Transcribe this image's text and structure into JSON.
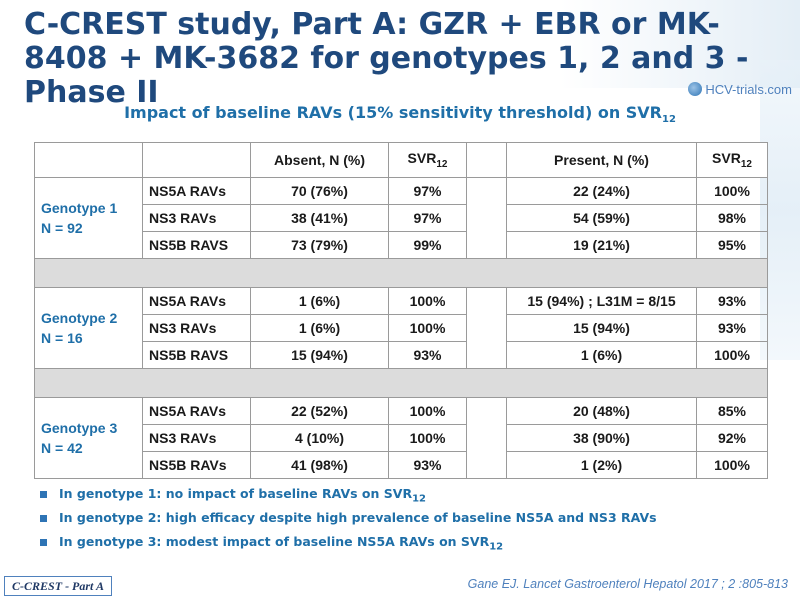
{
  "title": "C-CREST study, Part A: GZR + EBR or MK-8408 + MK-3682 for genotypes 1, 2 and 3 - Phase II",
  "logo_text": "HCV-trials.com",
  "subtitle": {
    "main": "Impact of baseline RAVs (15% sensitivity threshold) on SVR",
    "sub": "12"
  },
  "table": {
    "headers": {
      "absent": "Absent, N (%)",
      "svr": "SVR",
      "svr_sub": "12",
      "present": "Present, N (%)"
    },
    "groups": [
      {
        "genotype": "Genotype 1",
        "n": "N = 92",
        "rows": [
          {
            "rav": "NS5A RAVs",
            "absent": "70 (76%)",
            "svr_absent": "97%",
            "present": "22 (24%)",
            "svr_present": "100%"
          },
          {
            "rav": "NS3 RAVs",
            "absent": "38 (41%)",
            "svr_absent": "97%",
            "present": "54 (59%)",
            "svr_present": "98%"
          },
          {
            "rav": "NS5B RAVS",
            "absent": "73 (79%)",
            "svr_absent": "99%",
            "present": "19 (21%)",
            "svr_present": "95%"
          }
        ]
      },
      {
        "genotype": "Genotype 2",
        "n": "N = 16",
        "rows": [
          {
            "rav": "NS5A RAVs",
            "absent": "1 (6%)",
            "svr_absent": "100%",
            "present": "15 (94%) ; L31M = 8/15",
            "svr_present": "93%"
          },
          {
            "rav": "NS3 RAVs",
            "absent": "1 (6%)",
            "svr_absent": "100%",
            "present": "15 (94%)",
            "svr_present": "93%"
          },
          {
            "rav": "NS5B RAVS",
            "absent": "15 (94%)",
            "svr_absent": "93%",
            "present": "1 (6%)",
            "svr_present": "100%"
          }
        ]
      },
      {
        "genotype": "Genotype 3",
        "n": "N = 42",
        "rows": [
          {
            "rav": "NS5A RAVs",
            "absent": "22 (52%)",
            "svr_absent": "100%",
            "present": "20 (48%)",
            "svr_present": "85%"
          },
          {
            "rav": "NS3 RAVs",
            "absent": "4 (10%)",
            "svr_absent": "100%",
            "present": "38 (90%)",
            "svr_present": "92%"
          },
          {
            "rav": "NS5B RAVs",
            "absent": "41 (98%)",
            "svr_absent": "93%",
            "present": "1 (2%)",
            "svr_present": "100%"
          }
        ]
      }
    ]
  },
  "bullets": [
    {
      "text": "In genotype 1: no impact of baseline RAVs on SVR",
      "sub": "12"
    },
    {
      "text": "In genotype 2: high efficacy despite high prevalence of baseline NS5A and NS3 RAVs",
      "sub": ""
    },
    {
      "text": "In genotype 3: modest impact of baseline NS5A RAVs on SVR",
      "sub": "12"
    }
  ],
  "footer": {
    "tag": "C-CREST - Part A",
    "reference": "Gane EJ. Lancet Gastroenterol Hepatol 2017 ; 2 :805-813"
  },
  "colors": {
    "title": "#1f497d",
    "accent": "#1f6fa8",
    "separator_row": "#dcdcdc"
  }
}
